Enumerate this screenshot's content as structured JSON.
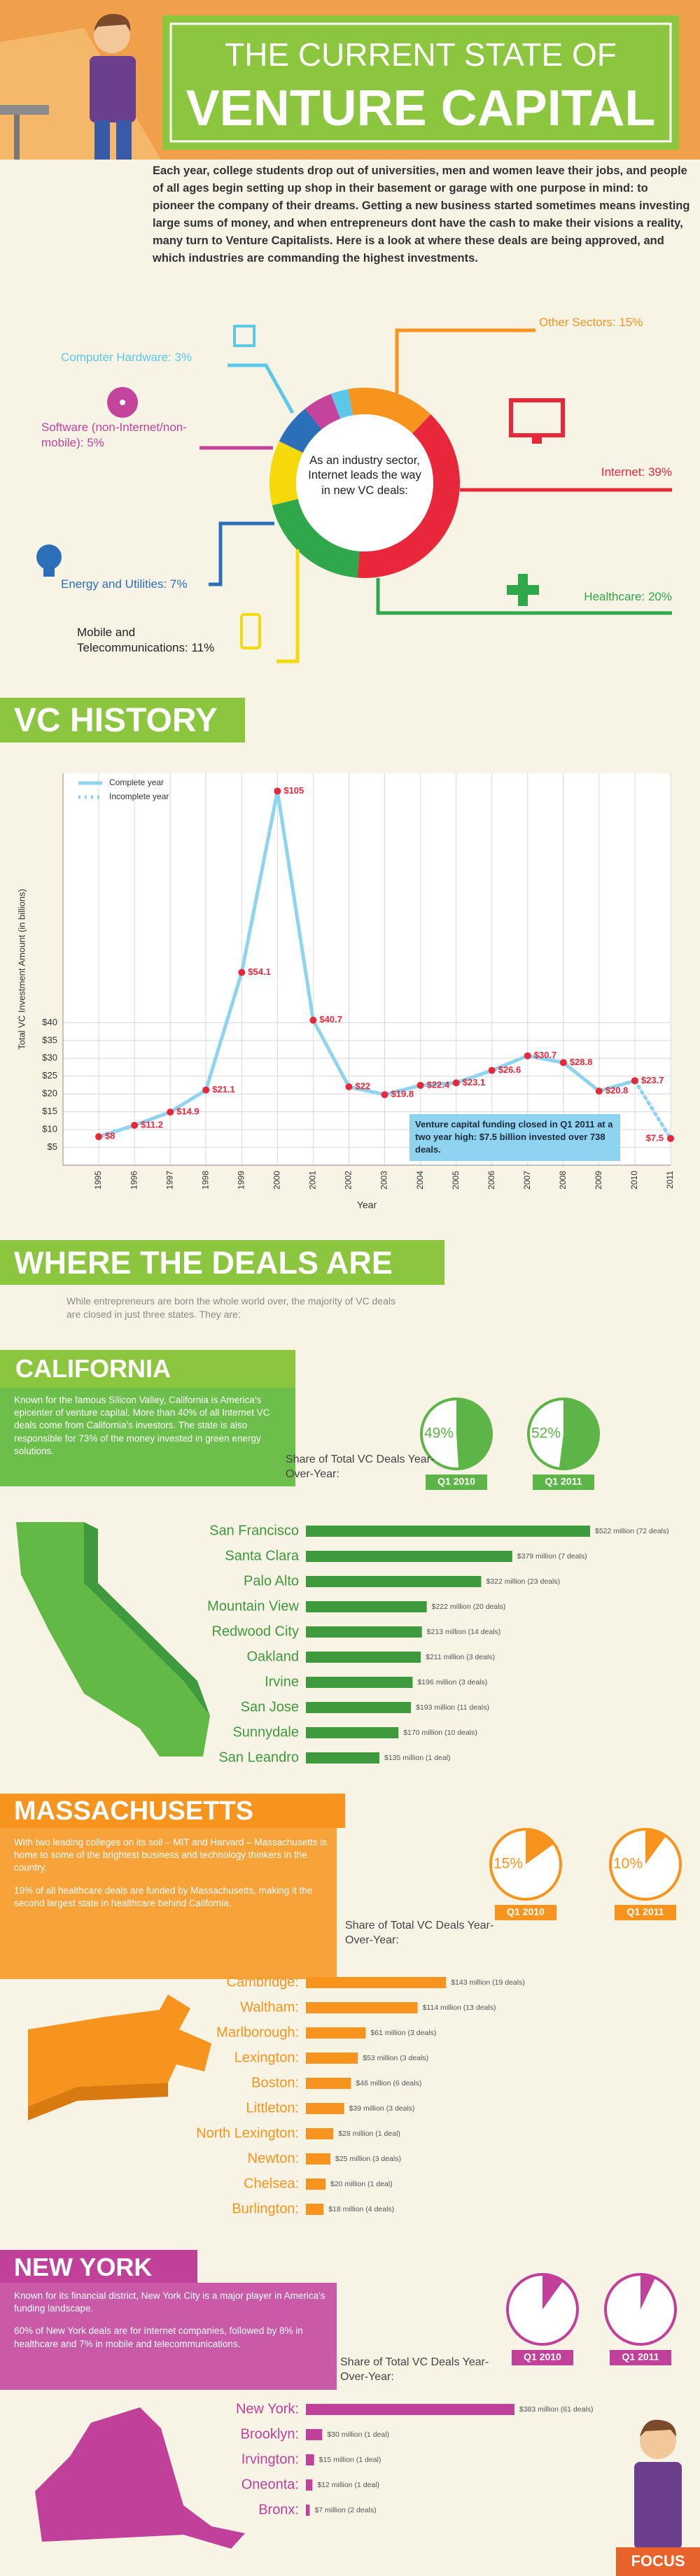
{
  "header": {
    "title_line1": "THE CURRENT STATE OF",
    "title_line2": "VENTURE CAPITAL",
    "intro": "Each year, college students drop out of universities, men and women leave their jobs, and people of all ages begin setting up shop in their basement or garage with one purpose in mind: to pioneer the company of their dreams. Getting a new business started sometimes means investing large sums of money, and when entrepreneurs dont have the cash to make their visions a reality, many turn to Venture Capitalists. Here is a look at where these deals are being approved, and which industries are commanding the highest investments."
  },
  "headings": {
    "vc_history": "VC HISTORY",
    "where": "WHERE THE DEALS ARE",
    "where_intro": "While entrepreneurs are born the whole world over, the majority of VC deals are closed in just three states. They are:"
  },
  "states": [
    {
      "name": "CALIFORNIA",
      "paragraphs": [
        "Known for the famous Silicon Valley, California is America's epicenter of venture capital. More than 40% of all Internet VC deals come from California's investors. The state is also responsible for 73% of the money invested in green energy solutions."
      ]
    },
    {
      "name": "MASSACHUSETTS",
      "paragraphs": [
        "With two leading colleges on its soil – MIT and Harvard – Massachusetts is home to some of the brightest business and technology thinkers in the country.",
        "19% of all healthcare deals are funded by Massachusetts, making it the second largest state in healthcare behind California."
      ]
    },
    {
      "name": "NEW YORK",
      "paragraphs": [
        "Known for its financial district, New York City is a major player in America's funding landscape.",
        "60% of New York deals are for Internet companies, followed by 8% in healthcare and 7% in mobile and telecommunications."
      ]
    }
  ],
  "chart_data": [
    {
      "type": "donut",
      "title": "As an industry sector, Internet leads the way in new VC deals:",
      "categories": [
        "Other Sectors:",
        "Internet:",
        "Healthcare:",
        "Mobile and Telecommunications:",
        "Energy and Utilities:",
        "Software (non-Internet/non-mobile):",
        "Computer Hardware:"
      ],
      "values": [
        15,
        39,
        20,
        11,
        7,
        5,
        3
      ],
      "value_labels": [
        "15%",
        "39%",
        "20%",
        "11%",
        "7%",
        "5%",
        "3%"
      ],
      "colors": [
        "#f7941d",
        "#e8283a",
        "#2ea84a",
        "#f5d90a",
        "#2a6fb8",
        "#c4449b",
        "#5bc8e8"
      ]
    },
    {
      "type": "line",
      "xlabel": "Year",
      "ylabel": "Total VC Investment Amount (in billions)",
      "x": [
        1995,
        1996,
        1997,
        1998,
        1999,
        2000,
        2001,
        2002,
        2003,
        2004,
        2005,
        2006,
        2007,
        2008,
        2009,
        2010,
        2011
      ],
      "xlim": [
        1994,
        2011
      ],
      "xticks": [
        1995,
        1996,
        1997,
        1998,
        1999,
        2000,
        2001,
        2002,
        2003,
        2004,
        2005,
        2006,
        2007,
        2008,
        2009,
        2010,
        2011
      ],
      "ylim": [
        0,
        110
      ],
      "yticks": [
        {
          "value": 5,
          "label": "$5"
        },
        {
          "value": 10,
          "label": "$10"
        },
        {
          "value": 15,
          "label": "$15"
        },
        {
          "value": 20,
          "label": "$20"
        },
        {
          "value": 25,
          "label": "$25"
        },
        {
          "value": 30,
          "label": "$30"
        },
        {
          "value": 35,
          "label": "$35"
        },
        {
          "value": 40,
          "label": "$40"
        }
      ],
      "grid": true,
      "legend": "upper left",
      "marker_color": "#e8283a",
      "series": [
        {
          "name": "Complete year",
          "color": "#8ed3f0",
          "values": [
            8,
            11.2,
            14.9,
            21.1,
            54.1,
            105,
            40.7,
            22,
            19.8,
            22.4,
            23.1,
            26.6,
            30.7,
            28.8,
            20.8,
            23.7,
            null
          ],
          "value_labels": [
            "$8",
            "$11.2",
            "$14.9",
            "$21.1",
            "$54.1",
            "$105",
            "$40.7",
            "$22",
            "$19.8",
            "$22.4",
            "$23.1",
            "$26.6",
            "$30.7",
            "$28.8",
            "$20.8",
            "$23.7",
            null
          ]
        },
        {
          "name": "Incomplete year",
          "color": "#8ed3f0",
          "linestyle": "dotted",
          "values": [
            null,
            null,
            null,
            null,
            null,
            null,
            null,
            null,
            null,
            null,
            null,
            null,
            null,
            null,
            null,
            23.7,
            7.5
          ],
          "value_labels": [
            null,
            null,
            null,
            null,
            null,
            null,
            null,
            null,
            null,
            null,
            null,
            null,
            null,
            null,
            null,
            null,
            "$7.5"
          ]
        }
      ],
      "annotation": "Venture capital funding closed in Q1 2011 at a two year high: $7.5 billion invested over 738 deals."
    },
    {
      "type": "pie",
      "title": "Share of Total VC Deals Year-Over-Year:",
      "categories": [
        "Q1 2010",
        "Q1 2011"
      ],
      "values": [
        49,
        52
      ],
      "value_labels": [
        "49%",
        "52%"
      ],
      "color": "#5db447"
    },
    {
      "type": "barh",
      "color": "#3e9a3c",
      "xlim": [
        0,
        540
      ],
      "categories": [
        "San Francisco",
        "Santa Clara",
        "Palo Alto",
        "Mountain View",
        "Redwood City",
        "Oakland",
        "Irvine",
        "San Jose",
        "Sunnydale",
        "San Leandro"
      ],
      "values": [
        522,
        379,
        322,
        222,
        213,
        211,
        196,
        193,
        170,
        135
      ],
      "value_labels": [
        "$522 million (72 deals)",
        "$379 million (7 deals)",
        "$322 million (23 deals)",
        "$222 million (20 deals)",
        "$213 million (14 deals)",
        "$211 million (3 deals)",
        "$196 million (3 deals)",
        "$193 million (11 deals)",
        "$170 million (10 deals)",
        "$135 million (1 deal)"
      ]
    },
    {
      "type": "pie",
      "title": "Share of Total VC Deals Year-Over-Year:",
      "categories": [
        "Q1 2010",
        "Q1 2011"
      ],
      "values": [
        15,
        10
      ],
      "value_labels": [
        "15%",
        "10%"
      ],
      "color": "#f7941d"
    },
    {
      "type": "barh",
      "color": "#f7941d",
      "xlim": [
        0,
        300
      ],
      "categories": [
        "Cambridge:",
        "Waltham:",
        "Marlborough:",
        "Lexington:",
        "Boston:",
        "Littleton:",
        "North Lexington:",
        "Newton:",
        "Chelsea:",
        "Burlington:"
      ],
      "values": [
        143,
        114,
        61,
        53,
        46,
        39,
        28,
        25,
        20,
        18
      ],
      "value_labels": [
        "$143 million (19 deals)",
        "$114 million (13 deals)",
        "$61 million (3 deals)",
        "$53 million (3 deals)",
        "$46 million (6 deals)",
        "$39 million (3 deals)",
        "$28 million (1 deal)",
        "$25 million (3 deals)",
        "$20 million (1 deal)",
        "$18 million (4 deals)"
      ]
    },
    {
      "type": "pie",
      "title": "Share of Total VC Deals Year-Over-Year:",
      "categories": [
        "Q1 2010",
        "Q1 2011"
      ],
      "values": [
        10,
        7
      ],
      "color": "#c0409a"
    },
    {
      "type": "barh",
      "color": "#c0409a",
      "xlim": [
        0,
        540
      ],
      "categories": [
        "New York:",
        "Brooklyn:",
        "Irvington:",
        "Oneonta:",
        "Bronx:"
      ],
      "values": [
        383,
        30,
        15,
        12,
        7
      ],
      "value_labels": [
        "$383 million (61 deals)",
        "$30 million (1 deal)",
        "$15 million (1 deal)",
        "$12 million (1 deal)",
        "$7 million (2 deals)"
      ]
    }
  ],
  "logo": "FOCUS"
}
